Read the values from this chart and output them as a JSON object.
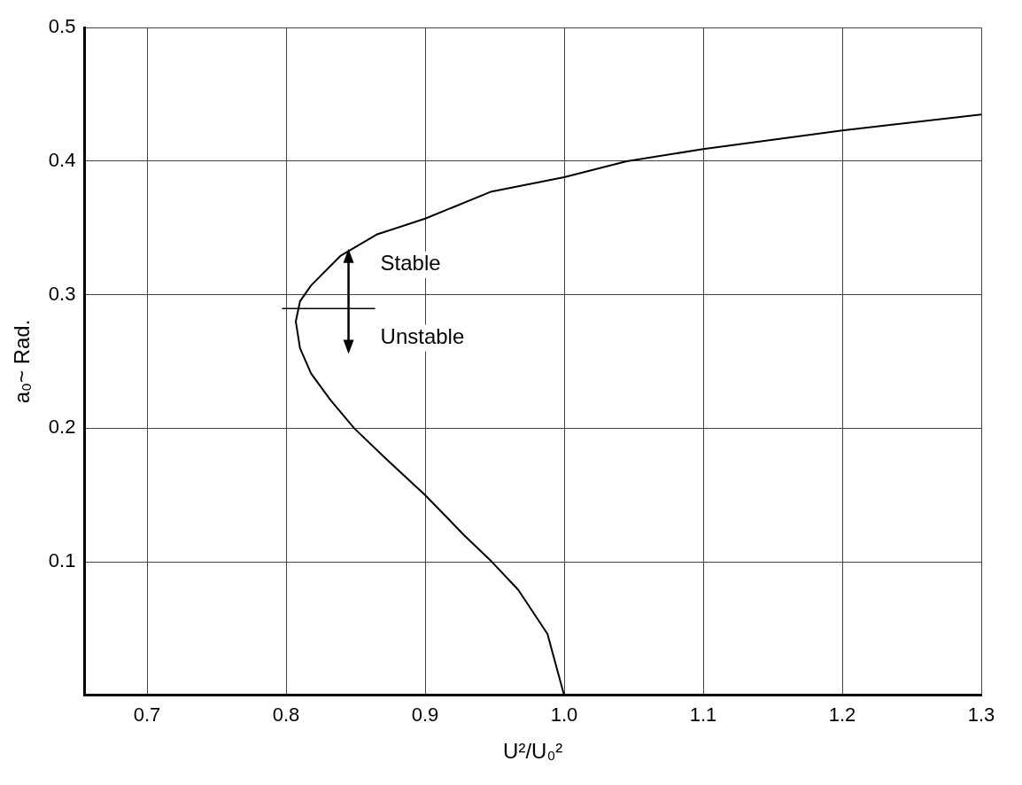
{
  "chart_data": {
    "type": "line",
    "xlabel": "U²/U₀²",
    "ylabel": "a₀~ Rad.",
    "xlim": [
      0.655,
      1.3
    ],
    "xticks": [
      0.7,
      0.8,
      0.9,
      {
        "value": 1,
        "label": "1.0"
      },
      1.1,
      1.2,
      1.3
    ],
    "ylim": [
      0,
      0.5
    ],
    "yticks": [
      {
        "value": 0,
        "label": null
      },
      0.1,
      0.2,
      0.3,
      0.4,
      0.5
    ],
    "grid": true,
    "marker": "none",
    "line_style": "solid",
    "series": [
      {
        "color": "#000000",
        "x": [
          1.0,
          0.988,
          0.967,
          0.948,
          0.928,
          0.9,
          0.872,
          0.849,
          0.832,
          0.818,
          0.81,
          0.807,
          0.81,
          0.818,
          0.839,
          0.865,
          0.9,
          0.947,
          1.0,
          1.045,
          1.1,
          1.2,
          1.3
        ],
        "values": [
          0,
          0.046,
          0.079,
          0.1,
          0.12,
          0.15,
          0.177,
          0.2,
          0.221,
          0.241,
          0.26,
          0.28,
          0.295,
          0.307,
          0.329,
          0.345,
          0.357,
          0.377,
          0.388,
          0.4,
          0.409,
          0.423,
          0.435
        ]
      }
    ],
    "annotations": [
      "Stable",
      "Unstable"
    ]
  }
}
